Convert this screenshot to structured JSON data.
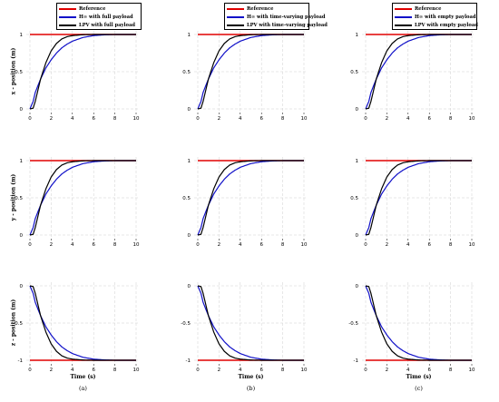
{
  "axis_tick_color": "#000000",
  "grid_color": "#cfcfcf",
  "chart_data": {
    "type": "line",
    "layout": "3x3 grid of small line plots",
    "grid": true,
    "row_ylabels": [
      "x - position (m)",
      "y - position (m)",
      "z - position (m)"
    ],
    "xlabel": "Time (s)",
    "xlim": [
      0,
      10
    ],
    "xticks": [
      "0",
      "2",
      "4",
      "6",
      "8",
      "10"
    ],
    "rows": [
      {
        "ylim": [
          0,
          1
        ],
        "yticks": [
          "0",
          "0.5",
          "1"
        ],
        "reference": 1,
        "start": 0
      },
      {
        "ylim": [
          0,
          1
        ],
        "yticks": [
          "0",
          "0.5",
          "1"
        ],
        "reference": 1,
        "start": 0
      },
      {
        "ylim": [
          -1,
          0
        ],
        "yticks": [
          "-1",
          "-0.5",
          "0"
        ],
        "reference": -1,
        "start": 0
      }
    ],
    "columns": [
      {
        "panel_label": "(a)",
        "legend_position": "above-top-right",
        "series": [
          {
            "name": "Reference",
            "color": "#e00000"
          },
          {
            "name": "H∞ with full payload",
            "color": "#1010c8"
          },
          {
            "name": "LPV with full payload",
            "color": "#000000"
          }
        ]
      },
      {
        "panel_label": "(b)",
        "legend_position": "above-top-right",
        "series": [
          {
            "name": "Reference",
            "color": "#e00000"
          },
          {
            "name": "H∞ with time-varying payload",
            "color": "#1010c8"
          },
          {
            "name": "LPV with time-varying payload",
            "color": "#000000"
          }
        ]
      },
      {
        "panel_label": "(c)",
        "legend_position": "above-top-right",
        "series": [
          {
            "name": "Reference",
            "color": "#e00000"
          },
          {
            "name": "H∞ with empty payload",
            "color": "#1010c8"
          },
          {
            "name": "LPV with empty payload",
            "color": "#000000"
          }
        ]
      }
    ],
    "response_samples": {
      "t": [
        0,
        0.3,
        0.5,
        0.8,
        1.0,
        1.5,
        2.0,
        2.5,
        3.0,
        3.5,
        4.0,
        5.0,
        6.0,
        7.0,
        8.0,
        10.0
      ],
      "lpv": [
        0,
        0.01,
        0.1,
        0.28,
        0.4,
        0.62,
        0.78,
        0.88,
        0.94,
        0.97,
        0.985,
        0.997,
        1.0,
        1.0,
        1.0,
        1.0
      ],
      "hinf": [
        0,
        0.1,
        0.22,
        0.33,
        0.4,
        0.55,
        0.66,
        0.75,
        0.82,
        0.87,
        0.91,
        0.96,
        0.985,
        0.995,
        1.0,
        1.0
      ]
    }
  }
}
